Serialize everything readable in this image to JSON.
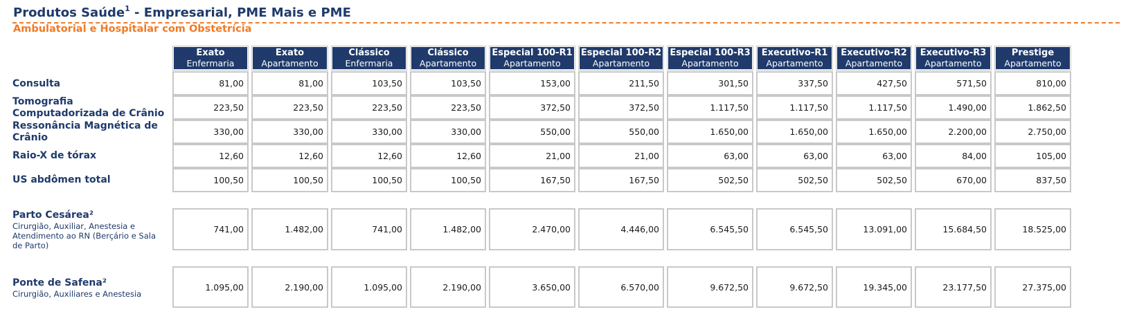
{
  "header": {
    "title": "Produtos Saúde",
    "title_sup": "1",
    "title_rest": " - Empresarial, PME Mais e PME",
    "subtitle": "Ambulatorial e Hospitalar com Obstetrícia"
  },
  "colors": {
    "navy": "#1f3a6b",
    "orange": "#f07a25",
    "border": "#c8c8c8"
  },
  "columns": [
    {
      "name": "Exato",
      "type": "Enfermaria"
    },
    {
      "name": "Exato",
      "type": "Apartamento"
    },
    {
      "name": "Clássico",
      "type": "Enfermaria"
    },
    {
      "name": "Clássico",
      "type": "Apartamento"
    },
    {
      "name": "Especial 100-R1",
      "type": "Apartamento"
    },
    {
      "name": "Especial 100-R2",
      "type": "Apartamento"
    },
    {
      "name": "Especial 100-R3",
      "type": "Apartamento"
    },
    {
      "name": "Executivo-R1",
      "type": "Apartamento"
    },
    {
      "name": "Executivo-R2",
      "type": "Apartamento"
    },
    {
      "name": "Executivo-R3",
      "type": "Apartamento"
    },
    {
      "name": "Prestige",
      "type": "Apartamento"
    }
  ],
  "rows": [
    {
      "label": "Consulta",
      "sub": "",
      "values": [
        "81,00",
        "81,00",
        "103,50",
        "103,50",
        "153,00",
        "211,50",
        "301,50",
        "337,50",
        "427,50",
        "571,50",
        "810,00"
      ]
    },
    {
      "label": "Tomografia Computadorizada de Crânio",
      "sub": "",
      "values": [
        "223,50",
        "223,50",
        "223,50",
        "223,50",
        "372,50",
        "372,50",
        "1.117,50",
        "1.117,50",
        "1.117,50",
        "1.490,00",
        "1.862,50"
      ]
    },
    {
      "label": "Ressonância Magnética de Crânio",
      "sub": "",
      "values": [
        "330,00",
        "330,00",
        "330,00",
        "330,00",
        "550,00",
        "550,00",
        "1.650,00",
        "1.650,00",
        "1.650,00",
        "2.200,00",
        "2.750,00"
      ]
    },
    {
      "label": "Raio-X de tórax",
      "sub": "",
      "values": [
        "12,60",
        "12,60",
        "12,60",
        "12,60",
        "21,00",
        "21,00",
        "63,00",
        "63,00",
        "63,00",
        "84,00",
        "105,00"
      ]
    },
    {
      "label": "US abdômen total",
      "sub": "",
      "values": [
        "100,50",
        "100,50",
        "100,50",
        "100,50",
        "167,50",
        "167,50",
        "502,50",
        "502,50",
        "502,50",
        "670,00",
        "837,50"
      ]
    },
    {
      "label": "Parto Cesárea²",
      "sub": "Cirurgião, Auxiliar, Anestesia e Atendimento ao RN (Berçário e Sala de Parto)",
      "values": [
        "741,00",
        "1.482,00",
        "741,00",
        "1.482,00",
        "2.470,00",
        "4.446,00",
        "6.545,50",
        "6.545,50",
        "13.091,00",
        "15.684,50",
        "18.525,00"
      ]
    },
    {
      "label": "Ponte de Safena²",
      "sub": "Cirurgião, Auxiliares e Anestesia",
      "values": [
        "1.095,00",
        "2.190,00",
        "1.095,00",
        "2.190,00",
        "3.650,00",
        "6.570,00",
        "9.672,50",
        "9.672,50",
        "19.345,00",
        "23.177,50",
        "27.375,00"
      ]
    }
  ]
}
